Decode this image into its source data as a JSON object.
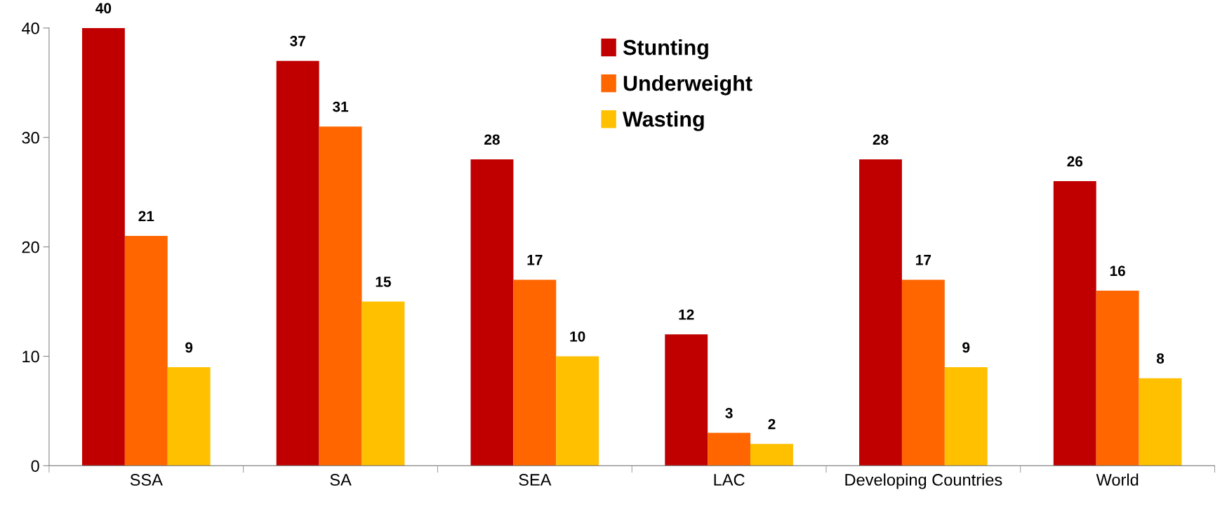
{
  "chart_data": {
    "type": "bar",
    "categories": [
      "SSA",
      "SA",
      "SEA",
      "LAC",
      "Developing Countries",
      "World"
    ],
    "series": [
      {
        "name": "Stunting",
        "color": "#c00000",
        "values": [
          40,
          37,
          28,
          12,
          28,
          26
        ]
      },
      {
        "name": "Underweight",
        "color": "#ff6600",
        "values": [
          21,
          31,
          17,
          3,
          17,
          16
        ]
      },
      {
        "name": "Wasting",
        "color": "#ffc000",
        "values": [
          9,
          15,
          10,
          2,
          9,
          8
        ]
      }
    ],
    "ylim": [
      0,
      40
    ],
    "yticks": [
      0,
      10,
      20,
      30,
      40
    ],
    "grid": false,
    "legend": "top",
    "data_labels": true
  }
}
